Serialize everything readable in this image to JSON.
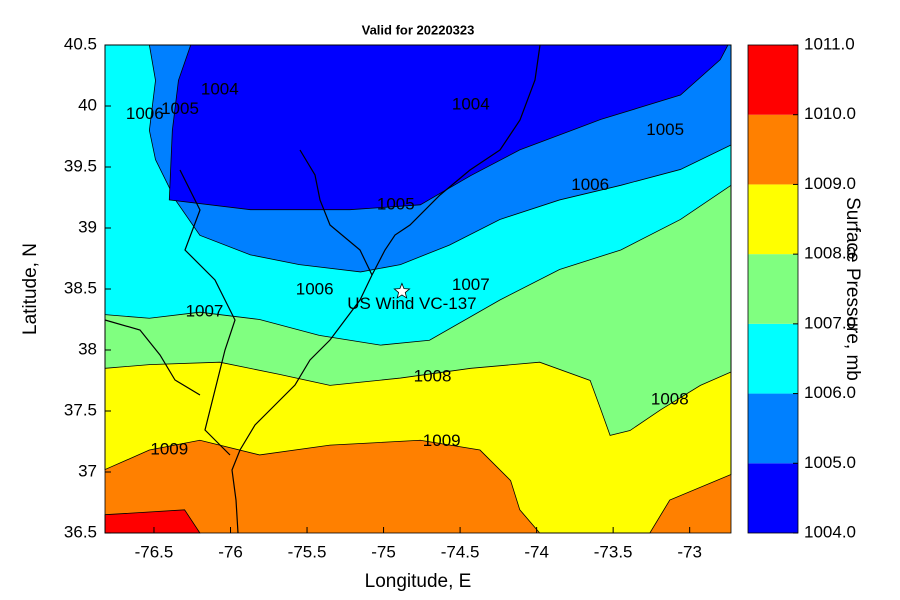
{
  "chart_data": {
    "type": "contour",
    "title": "Valid for 20220323",
    "xlabel": "Longitude, E",
    "ylabel": "Latitude, N",
    "xlim": [
      -76.82,
      -72.73
    ],
    "ylim": [
      36.5,
      40.5
    ],
    "xticks": [
      -76.5,
      -76,
      -75.5,
      -75,
      -74.5,
      -74,
      -73.5,
      -73
    ],
    "yticks": [
      36.5,
      37,
      37.5,
      38,
      38.5,
      39,
      39.5,
      40,
      40.5
    ],
    "colorbar": {
      "label": "Surface Pressure, mb",
      "ticks": [
        {
          "value": 1004,
          "label": "1004.0"
        },
        {
          "value": 1005,
          "label": "1005.0"
        },
        {
          "value": 1006,
          "label": "1006.0"
        },
        {
          "value": 1007,
          "label": "1007.0"
        },
        {
          "value": 1008,
          "label": "1008.0"
        },
        {
          "value": 1009,
          "label": "1009.0"
        },
        {
          "value": 1010,
          "label": "1010.0"
        },
        {
          "value": 1011,
          "label": "1011.0"
        }
      ],
      "colors": [
        "#0000ff",
        "#0080ff",
        "#00ffff",
        "#80ff80",
        "#ffff00",
        "#ff8000",
        "#ff0000"
      ]
    },
    "regions": [
      {
        "level": 1009,
        "lon": [
          -76.82,
          -72.73,
          -72.73,
          -76.82
        ],
        "lat": [
          36.5,
          36.5,
          40.5,
          40.5
        ]
      },
      {
        "level": 1010,
        "lon": [
          -76.82,
          -76.3,
          -76.2,
          -76.82
        ],
        "lat": [
          36.65,
          36.69,
          36.5,
          36.5
        ]
      },
      {
        "level": 1008,
        "lon": [
          -76.82,
          -76.53,
          -76.2,
          -75.81,
          -75.35,
          -74.76,
          -74.37,
          -74.17,
          -74.11,
          -73.98,
          -73.26,
          -73.13,
          -72.73,
          -72.73,
          -76.82
        ],
        "lat": [
          37.02,
          37.18,
          37.26,
          37.14,
          37.22,
          37.26,
          37.18,
          36.93,
          36.69,
          36.5,
          36.5,
          36.77,
          36.98,
          40.5,
          40.5
        ]
      },
      {
        "level": 1007,
        "lon": [
          -76.82,
          -76.53,
          -76.07,
          -75.68,
          -75.35,
          -74.89,
          -74.43,
          -73.98,
          -73.65,
          -73.58,
          -73.52,
          -73.39,
          -73.19,
          -72.93,
          -72.73,
          -72.73,
          -76.82
        ],
        "lat": [
          37.85,
          37.88,
          37.9,
          37.8,
          37.71,
          37.77,
          37.85,
          37.9,
          37.75,
          37.51,
          37.3,
          37.34,
          37.51,
          37.71,
          37.82,
          40.5,
          40.5
        ]
      },
      {
        "level": 1006,
        "lon": [
          -76.82,
          -76.53,
          -76.2,
          -75.81,
          -75.42,
          -75.02,
          -74.7,
          -74.24,
          -73.85,
          -73.45,
          -73.06,
          -72.73,
          -72.73,
          -76.82
        ],
        "lat": [
          38.29,
          38.26,
          38.31,
          38.25,
          38.12,
          38.04,
          38.08,
          38.41,
          38.66,
          38.82,
          39.07,
          39.35,
          40.5,
          40.5
        ]
      },
      {
        "level": 1005,
        "lon": [
          -76.53,
          -76.49,
          -76.53,
          -76.49,
          -76.36,
          -76.2,
          -75.87,
          -75.55,
          -75.15,
          -74.89,
          -74.57,
          -74.24,
          -73.85,
          -73.45,
          -73.06,
          -72.73,
          -72.73
        ],
        "lat": [
          40.5,
          40.21,
          39.8,
          39.56,
          39.23,
          38.94,
          38.78,
          38.7,
          38.64,
          38.7,
          38.86,
          39.07,
          39.23,
          39.35,
          39.48,
          39.68,
          40.5
        ]
      },
      {
        "level": 1004,
        "lon": [
          -76.26,
          -76.34,
          -76.38,
          -76.4,
          -75.87,
          -75.22,
          -74.76,
          -74.43,
          -74.11,
          -73.58,
          -73.06,
          -72.8,
          -72.75
        ],
        "lat": [
          40.5,
          40.21,
          39.8,
          39.23,
          39.15,
          39.15,
          39.19,
          39.43,
          39.64,
          39.89,
          40.09,
          40.38,
          40.5
        ]
      }
    ],
    "contour_labels": [
      {
        "value": 1004,
        "lon": -76.07,
        "lat": 40.13
      },
      {
        "value": 1004,
        "lon": -74.43,
        "lat": 40.01
      },
      {
        "value": 1005,
        "lon": -76.33,
        "lat": 39.97
      },
      {
        "value": 1005,
        "lon": -74.92,
        "lat": 39.19
      },
      {
        "value": 1005,
        "lon": -73.16,
        "lat": 39.8
      },
      {
        "value": 1006,
        "lon": -76.56,
        "lat": 39.93
      },
      {
        "value": 1006,
        "lon": -73.65,
        "lat": 39.35
      },
      {
        "value": 1006,
        "lon": -75.45,
        "lat": 38.49
      },
      {
        "value": 1007,
        "lon": -76.17,
        "lat": 38.31
      },
      {
        "value": 1007,
        "lon": -74.43,
        "lat": 38.53
      },
      {
        "value": 1008,
        "lon": -74.68,
        "lat": 37.78
      },
      {
        "value": 1008,
        "lon": -73.13,
        "lat": 37.59
      },
      {
        "value": 1009,
        "lon": -76.4,
        "lat": 37.18
      },
      {
        "value": 1009,
        "lon": -74.62,
        "lat": 37.25
      }
    ],
    "site": {
      "name": "US Wind VC-137",
      "lon": -74.88,
      "lat": 38.48
    }
  }
}
